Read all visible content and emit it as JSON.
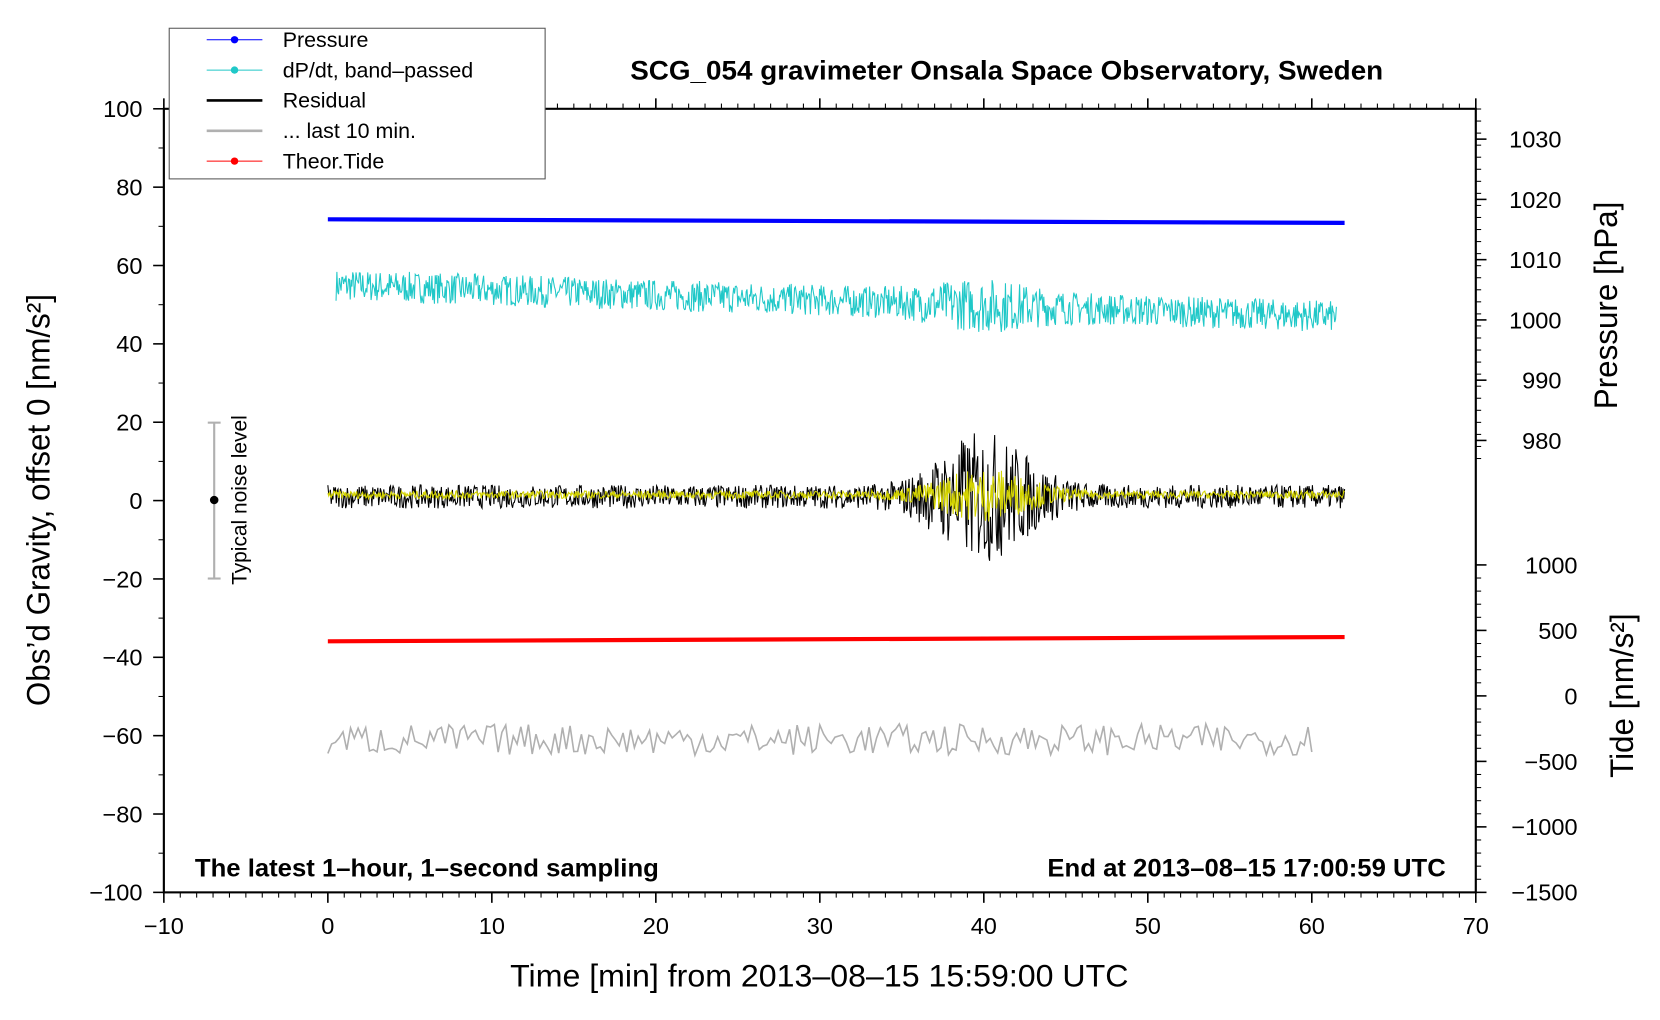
{
  "chart_data": {
    "type": "line",
    "title": "SCG_054 gravimeter Onsala Space Observatory, Sweden",
    "xlabel": "Time [min] from 2013–08–15 15:59:00 UTC",
    "ylabel_left": "Obs’d Gravity, offset 0 [nm/s²]",
    "ylabel_right_pressure": "Pressure [hPa]",
    "ylabel_right_tide": "Tide [nm/s²]",
    "xlim": [
      -10,
      70
    ],
    "ylim": [
      -100,
      100
    ],
    "pressure_lim": [
      1030,
      980
    ],
    "tide_lim": [
      -1500,
      1000
    ],
    "x_ticks": [
      -10,
      0,
      10,
      20,
      30,
      40,
      50,
      60,
      70
    ],
    "x_tick_labels": [
      "−10",
      "0",
      "10",
      "20",
      "30",
      "40",
      "50",
      "60",
      "70"
    ],
    "y_ticks": [
      100,
      80,
      60,
      40,
      20,
      0,
      -20,
      -40,
      -60,
      -80,
      -100
    ],
    "y_tick_labels": [
      "100",
      "80",
      "60",
      "40",
      "20",
      "0",
      "−20",
      "−40",
      "−60",
      "−80",
      "−100"
    ],
    "pressure_ticks": [
      1030,
      1020,
      1010,
      1000,
      990,
      980
    ],
    "tide_ticks": [
      1000,
      500,
      0,
      -500,
      -1000,
      -1500
    ],
    "tide_tick_labels": [
      "1000",
      "500",
      "0",
      "−500",
      "−1000",
      "−1500"
    ],
    "legend": [
      {
        "label": "Pressure",
        "color": "#0000ff",
        "marker": true
      },
      {
        "label": "dP/dt, band–passed",
        "color": "#20c8c8",
        "marker": true
      },
      {
        "label": "Residual",
        "color": "#000000",
        "marker": false
      },
      {
        "label": "... last 10 min.",
        "color": "#b0b0b0",
        "marker": false
      },
      {
        "label": "Theor.Tide",
        "color": "#ff0000",
        "marker": true
      }
    ],
    "legend_position": "top-left",
    "annotation_left": "The latest 1–hour, 1–second sampling",
    "annotation_right": "End at 2013–08–15 17:00:59 UTC",
    "noise_label": "Typical noise level",
    "noise_bar": [
      -20,
      20
    ],
    "series": [
      {
        "name": "Pressure",
        "axis": "pressure",
        "x": [
          0,
          62
        ],
        "y": [
          1016.7,
          1016.1
        ],
        "color": "#0000ff"
      },
      {
        "name": "dP/dt, band-passed",
        "axis": "gravity",
        "x_range": [
          0.5,
          61.5
        ],
        "baseline": [
          55,
          47
        ],
        "noise_amplitude": 4,
        "burst_at": 40,
        "color": "#20c8c8"
      },
      {
        "name": "Residual",
        "axis": "gravity",
        "x_range": [
          0,
          62
        ],
        "baseline": 1,
        "noise_amplitude": 3,
        "burst_at": 40,
        "burst_amplitude": 14,
        "color": "#000000"
      },
      {
        "name": "Residual smoothed",
        "axis": "gravity",
        "x_range": [
          0,
          62
        ],
        "baseline": 1.5,
        "noise_amplitude": 1,
        "burst_at": 40,
        "burst_amplitude": 6,
        "color": "#d4d400"
      },
      {
        "name": "... last 10 min.",
        "axis": "gravity",
        "x_range": [
          0,
          60
        ],
        "baseline": -61,
        "noise_amplitude": 4,
        "color": "#b0b0b0"
      },
      {
        "name": "Theor.Tide",
        "axis": "tide",
        "x": [
          0,
          62
        ],
        "y": [
          417,
          449
        ],
        "color": "#ff0000"
      }
    ]
  }
}
